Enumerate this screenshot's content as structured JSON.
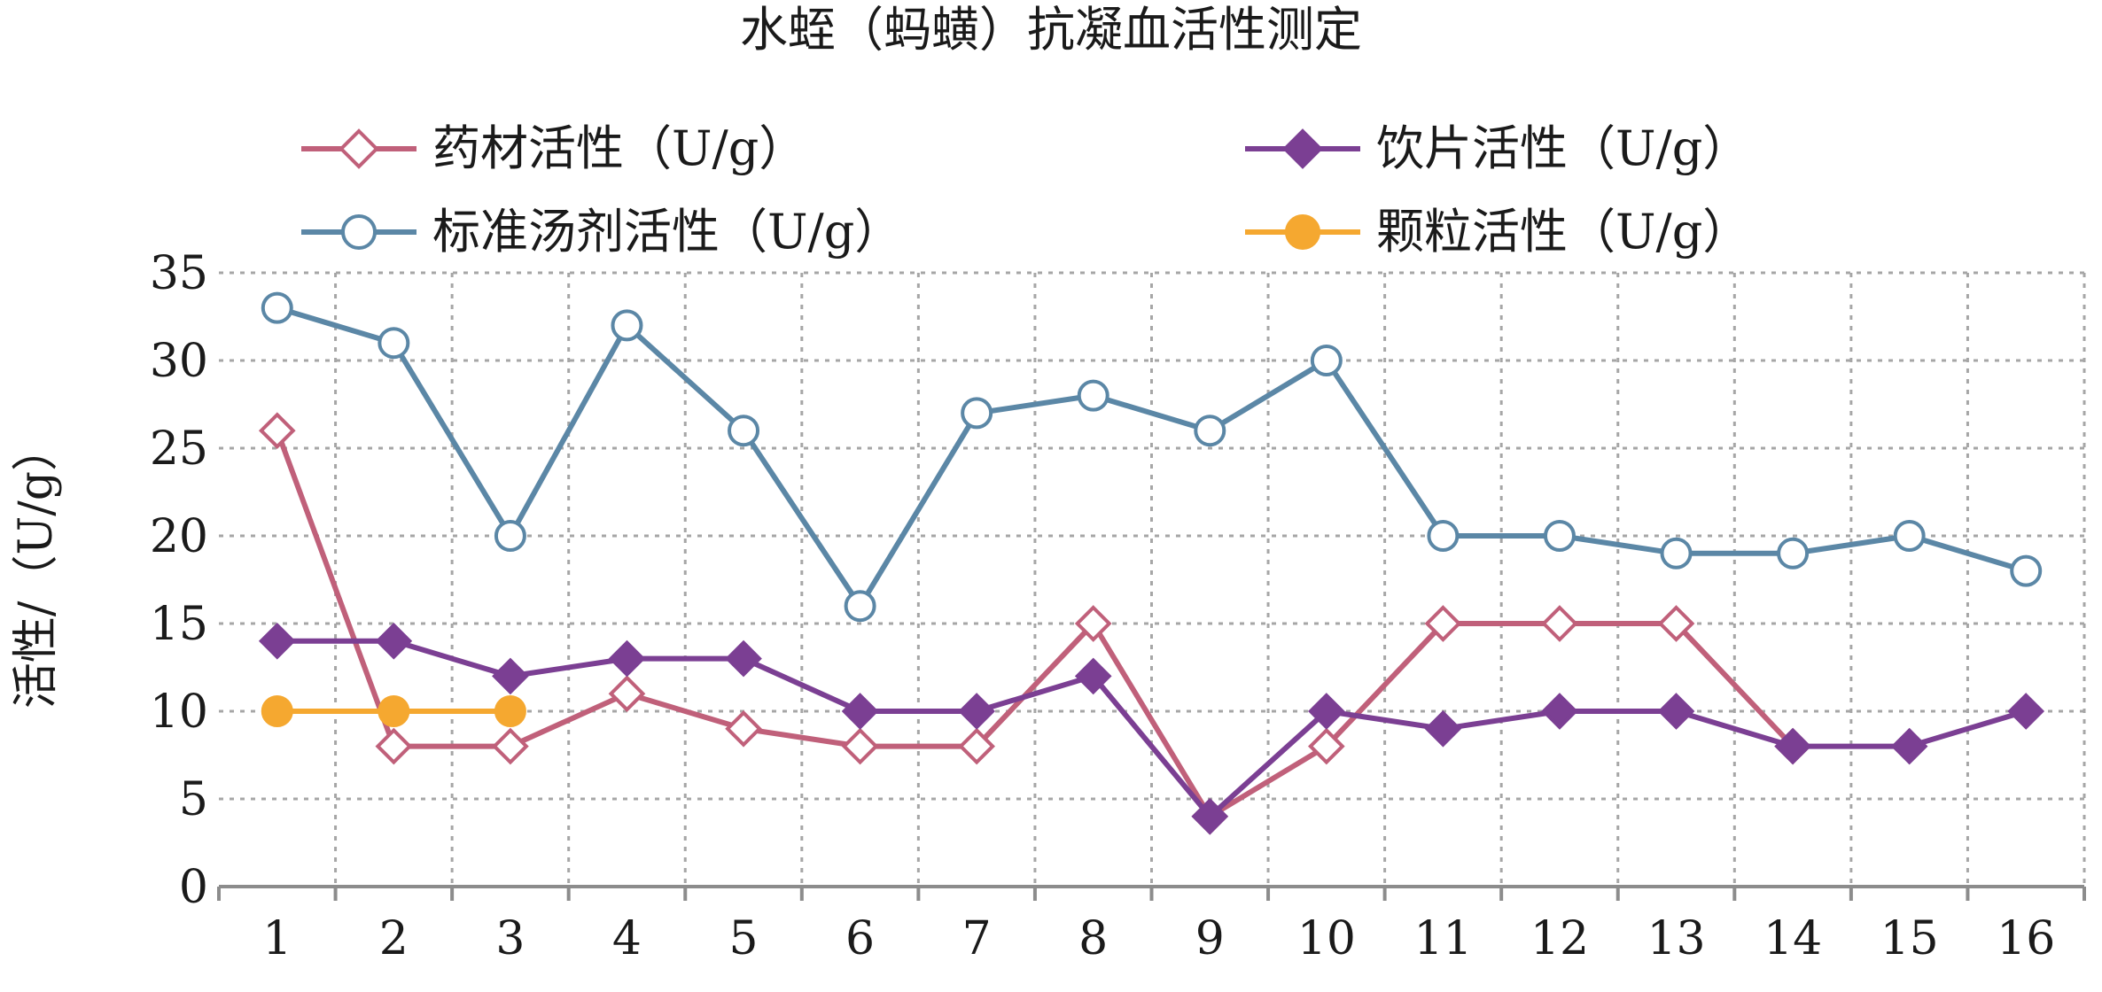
{
  "chart_data": {
    "type": "line",
    "title": "水蛭（蚂蟥）抗凝血活性测定",
    "xlabel": "",
    "ylabel": "活性/（U/g）",
    "categories": [
      "1",
      "2",
      "3",
      "4",
      "5",
      "6",
      "7",
      "8",
      "9",
      "10",
      "11",
      "12",
      "13",
      "14",
      "15",
      "16"
    ],
    "ylim": [
      0,
      35
    ],
    "yticks": [
      0,
      5,
      10,
      15,
      20,
      25,
      30,
      35
    ],
    "grid": true,
    "legend_position": "top",
    "series": [
      {
        "name": "药材活性（U/g）",
        "color": "#c0607a",
        "marker": "diamond-open",
        "x": [
          1,
          2,
          3,
          4,
          5,
          6,
          7,
          8,
          9,
          10,
          11,
          12,
          13,
          14
        ],
        "values": [
          26,
          8,
          8,
          11,
          9,
          8,
          8,
          15,
          4,
          8,
          15,
          15,
          15,
          8
        ]
      },
      {
        "name": "饮片活性（U/g）",
        "color": "#7b3f93",
        "marker": "diamond-filled",
        "x": [
          1,
          2,
          3,
          4,
          5,
          6,
          7,
          8,
          9,
          10,
          11,
          12,
          13,
          14,
          15,
          16
        ],
        "values": [
          14,
          14,
          12,
          13,
          13,
          10,
          10,
          12,
          4,
          10,
          9,
          10,
          10,
          8,
          8,
          10
        ]
      },
      {
        "name": "标准汤剂活性（U/g）",
        "color": "#5b87a6",
        "marker": "circle-open",
        "x": [
          1,
          2,
          3,
          4,
          5,
          6,
          7,
          8,
          9,
          10,
          11,
          12,
          13,
          14,
          15,
          16
        ],
        "values": [
          33,
          31,
          20,
          32,
          26,
          16,
          27,
          28,
          26,
          30,
          20,
          20,
          19,
          19,
          20,
          18
        ]
      },
      {
        "name": "颗粒活性（U/g）",
        "color": "#f5a830",
        "marker": "circle-filled",
        "x": [
          1,
          2,
          3
        ],
        "values": [
          10,
          10,
          10
        ]
      }
    ]
  }
}
